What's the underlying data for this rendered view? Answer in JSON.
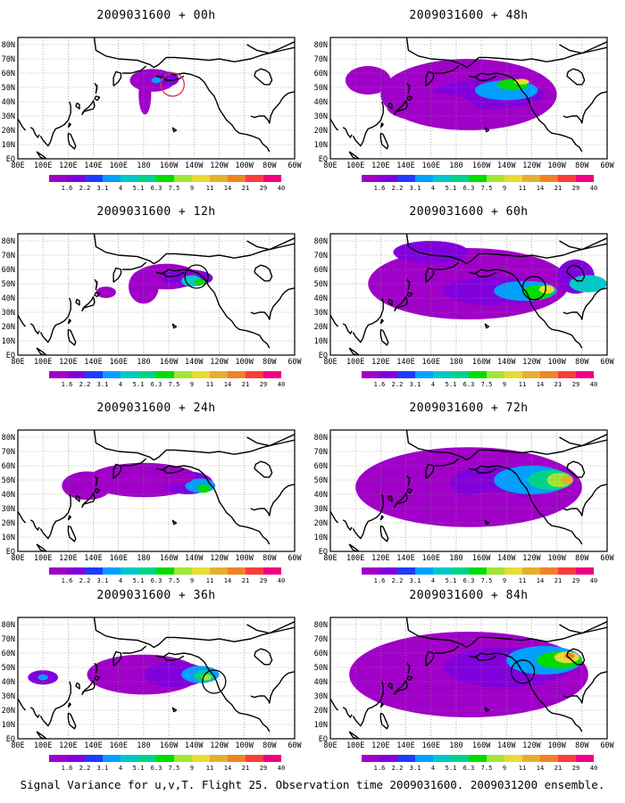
{
  "panels": [
    {
      "id": "p00",
      "title": "2009031600 + 00h",
      "stage": 0
    },
    {
      "id": "p48",
      "title": "2009031600 + 48h",
      "stage": 4
    },
    {
      "id": "p12",
      "title": "2009031600 + 12h",
      "stage": 1
    },
    {
      "id": "p60",
      "title": "2009031600 + 60h",
      "stage": 5
    },
    {
      "id": "p24",
      "title": "2009031600 + 24h",
      "stage": 2
    },
    {
      "id": "p72",
      "title": "2009031600 + 72h",
      "stage": 6
    },
    {
      "id": "p36",
      "title": "2009031600 + 36h",
      "stage": 3
    },
    {
      "id": "p84",
      "title": "2009031600 + 84h",
      "stage": 7
    }
  ],
  "axes": {
    "lon_labels": [
      "80E",
      "100E",
      "120E",
      "140E",
      "160E",
      "180",
      "160W",
      "140W",
      "120W",
      "100W",
      "80W",
      "60W"
    ],
    "lat_labels": [
      "80N",
      "70N",
      "60N",
      "50N",
      "40N",
      "30N",
      "20N",
      "10N",
      "EQ"
    ]
  },
  "colorbar": {
    "labels": [
      "1.6",
      "2.2",
      "3.1",
      "4",
      "5.1",
      "6.3",
      "7.5",
      "9",
      "11",
      "14",
      "21",
      "29",
      "40"
    ],
    "colors": [
      "#a000c8",
      "#8200dc",
      "#1e3cff",
      "#00a0ff",
      "#00c8c8",
      "#00d28c",
      "#00dc00",
      "#a0e632",
      "#e6dc32",
      "#e6af2d",
      "#f08228",
      "#fa3c3c",
      "#f00082"
    ]
  },
  "caption": "Signal Variance for u,v,T. Flight 25. Observation time 2009031600. 2009031200 ensemble."
}
